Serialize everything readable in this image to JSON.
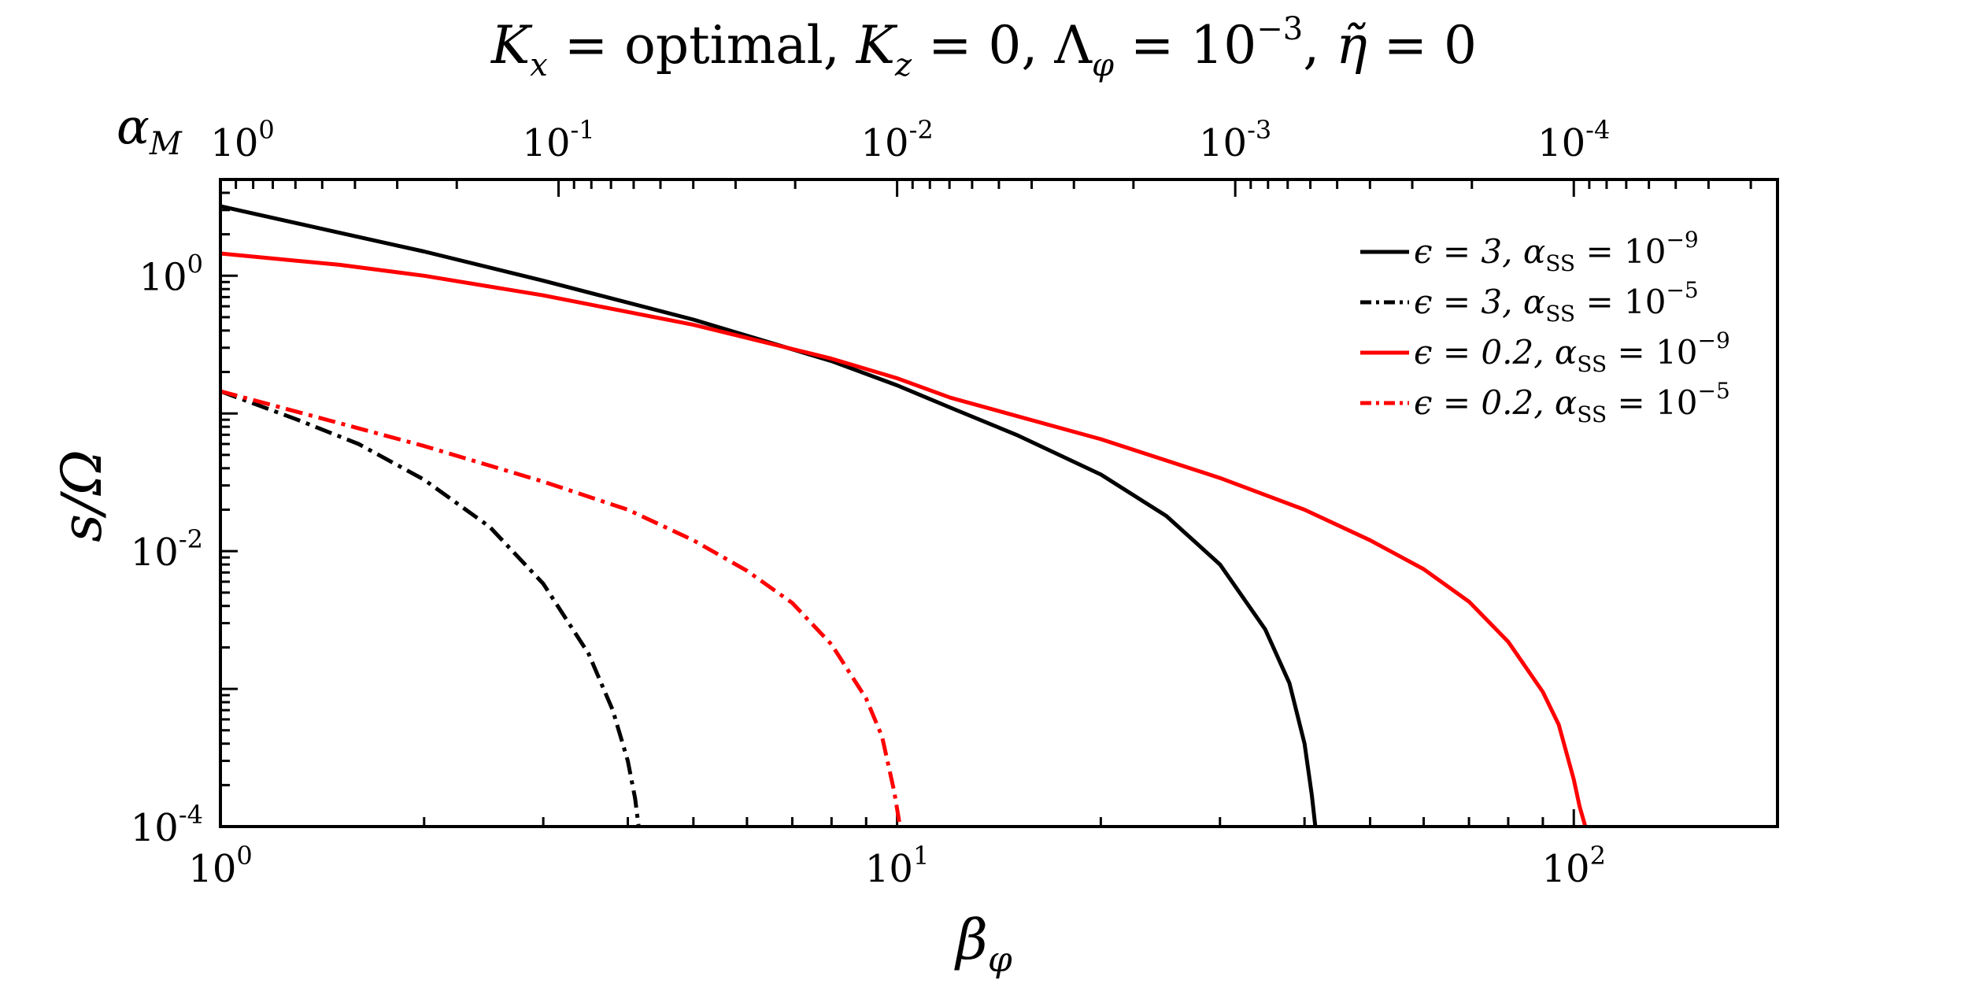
{
  "chart_data": {
    "type": "line",
    "title": "K_x = optimal, K_z = 0, Λ_φ = 10^-3, η̃ = 0",
    "title_parts": {
      "k": "K",
      "x_sub": "x",
      "eq_opt": " = optimal, ",
      "z_sub": "z",
      "eq_zero": " = 0, ",
      "lambda": "Λ",
      "phi_sub": "φ",
      "eq_ten": " = 10",
      "exp": "−3",
      "comma": ", ",
      "eta": "η̃",
      "eq_end": " = 0"
    },
    "xlabel": "β_φ",
    "xlabel_parts": {
      "main": "β",
      "sub": "φ"
    },
    "ylabel": "s/Ω",
    "top_axis_label": "α_M",
    "top_axis_label_parts": {
      "main": "α",
      "sub": "M"
    },
    "x_scale": "log",
    "y_scale": "log",
    "xlim": [
      1,
      200
    ],
    "ylim": [
      0.0001,
      5
    ],
    "x_ticks": [
      {
        "value": 1,
        "base": "10",
        "exp": "0"
      },
      {
        "value": 10,
        "base": "10",
        "exp": "1"
      },
      {
        "value": 100,
        "base": "10",
        "exp": "2"
      }
    ],
    "y_ticks": [
      {
        "value": 1,
        "base": "10",
        "exp": "0"
      },
      {
        "value": 0.01,
        "base": "10",
        "exp": "-2"
      },
      {
        "value": 0.0001,
        "base": "10",
        "exp": "-4"
      }
    ],
    "top_ticks": [
      {
        "beta": 1,
        "base": "10",
        "exp": "0"
      },
      {
        "beta": 3.16,
        "base": "10",
        "exp": "-1"
      },
      {
        "beta": 10,
        "base": "10",
        "exp": "-2"
      },
      {
        "beta": 31.6,
        "base": "10",
        "exp": "-3"
      },
      {
        "beta": 100,
        "base": "10",
        "exp": "-4"
      }
    ],
    "legend_position": "top-right",
    "grid": false,
    "series": [
      {
        "name": "ε = 3, α_SS = 10^-9",
        "legend": {
          "eps": "ϵ = 3, ",
          "alpha": "α",
          "sub": "SS",
          "eq": " = 10",
          "exp": "−9"
        },
        "color": "#000000",
        "dash": "solid",
        "x": [
          1,
          1.5,
          2,
          3,
          5,
          8,
          10,
          12,
          15,
          20,
          25,
          30,
          35,
          38,
          40,
          41,
          41.5
        ],
        "y": [
          3.2,
          2.05,
          1.5,
          0.92,
          0.48,
          0.24,
          0.16,
          0.11,
          0.07,
          0.036,
          0.018,
          0.008,
          0.0027,
          0.0011,
          0.0004,
          0.00017,
          0.0001
        ]
      },
      {
        "name": "ε = 3, α_SS = 10^-5",
        "legend": {
          "eps": "ϵ = 3, ",
          "alpha": "α",
          "sub": "SS",
          "eq": " = 10",
          "exp": "−5"
        },
        "color": "#000000",
        "dash": "dashdot",
        "x": [
          1,
          1.3,
          1.6,
          2,
          2.5,
          3,
          3.5,
          3.8,
          4,
          4.1,
          4.15
        ],
        "y": [
          0.145,
          0.09,
          0.06,
          0.033,
          0.015,
          0.0058,
          0.0018,
          0.0007,
          0.0003,
          0.00016,
          0.0001
        ]
      },
      {
        "name": "ε = 0.2, α_SS = 10^-9",
        "legend": {
          "eps": "ϵ = 0.2, ",
          "alpha": "α",
          "sub": "SS",
          "eq": " = 10",
          "exp": "−9"
        },
        "color": "#ff0000",
        "dash": "solid",
        "x": [
          1,
          1.5,
          2,
          3,
          5,
          8,
          10,
          12,
          15,
          20,
          30,
          40,
          50,
          60,
          70,
          80,
          90,
          95,
          100,
          102,
          104
        ],
        "y": [
          1.45,
          1.2,
          1.0,
          0.72,
          0.44,
          0.25,
          0.18,
          0.13,
          0.096,
          0.065,
          0.034,
          0.02,
          0.012,
          0.0074,
          0.0043,
          0.0022,
          0.00095,
          0.00055,
          0.00022,
          0.00014,
          0.0001
        ]
      },
      {
        "name": "ε = 0.2, α_SS = 10^-5",
        "legend": {
          "eps": "ϵ = 0.2, ",
          "alpha": "α",
          "sub": "SS",
          "eq": " = 10",
          "exp": "−5"
        },
        "color": "#ff0000",
        "dash": "dashdot",
        "x": [
          1,
          1.5,
          2,
          3,
          4,
          5,
          6,
          7,
          8,
          9,
          9.5,
          9.9,
          10.1
        ],
        "y": [
          0.145,
          0.085,
          0.058,
          0.032,
          0.02,
          0.012,
          0.0072,
          0.0042,
          0.0021,
          0.00085,
          0.00045,
          0.00018,
          0.0001
        ]
      }
    ]
  }
}
